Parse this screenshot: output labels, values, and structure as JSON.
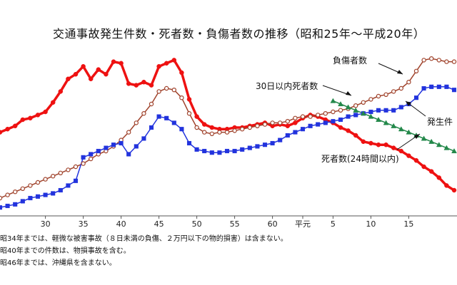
{
  "chart_data": {
    "type": "line",
    "title": "交通事故発生件数・死者数・負傷者数の推移（昭和25年～平成20年）",
    "x_ticks": [
      "30",
      "35",
      "40",
      "45",
      "50",
      "55",
      "60",
      "平元",
      "5",
      "10",
      "15"
    ],
    "series": [
      {
        "name": "死者数（24時間以内）",
        "color": "#ee1111",
        "x": [
          24,
          25,
          26,
          27,
          28,
          29,
          30,
          31,
          32,
          33,
          34,
          35,
          36,
          37,
          38,
          39,
          40,
          41,
          42,
          43,
          44,
          45,
          46,
          47,
          48,
          49,
          50,
          51,
          52,
          53,
          54,
          55,
          56,
          57,
          58,
          59,
          60,
          61,
          62,
          63,
          64,
          65,
          66,
          67,
          68,
          69,
          70,
          71,
          72,
          73,
          74,
          75,
          76,
          77,
          78,
          79,
          80,
          81,
          82,
          83,
          84
        ],
        "y": [
          52,
          54,
          56,
          60,
          61,
          63,
          65,
          71,
          78,
          86,
          89,
          94,
          86,
          92,
          89,
          97,
          96,
          83,
          82,
          84,
          82,
          94,
          96,
          98,
          90,
          73,
          62,
          57,
          55,
          54,
          54,
          55,
          55,
          56,
          57,
          58,
          56,
          57,
          56,
          58,
          61,
          63,
          62,
          60,
          58,
          55,
          53,
          50,
          46,
          45,
          44,
          44,
          42,
          40,
          37,
          34,
          30,
          27,
          23,
          18,
          15
        ]
      },
      {
        "name": "負傷者数",
        "color": "#a0432c",
        "x": [
          24,
          25,
          26,
          27,
          28,
          29,
          30,
          31,
          32,
          33,
          34,
          35,
          36,
          37,
          38,
          39,
          40,
          41,
          42,
          43,
          44,
          45,
          46,
          47,
          48,
          49,
          50,
          51,
          52,
          53,
          54,
          55,
          56,
          57,
          58,
          59,
          60,
          61,
          62,
          63,
          64,
          65,
          66,
          67,
          68,
          69,
          70,
          71,
          72,
          73,
          74,
          75,
          76,
          77,
          78,
          79,
          80,
          81,
          82,
          83,
          84
        ],
        "y": [
          10,
          12,
          14,
          16,
          18,
          20,
          22,
          24,
          26,
          28,
          30,
          32,
          35,
          38,
          40,
          43,
          47,
          52,
          58,
          64,
          70,
          78,
          80,
          79,
          74,
          64,
          55,
          52,
          51,
          52,
          52,
          53,
          54,
          55,
          56,
          57,
          58,
          58,
          59,
          61,
          62,
          62,
          63,
          64,
          65,
          66,
          67,
          69,
          71,
          73,
          75,
          76,
          78,
          80,
          84,
          91,
          98,
          99,
          98,
          97,
          97
        ]
      },
      {
        "name": "発生件数",
        "color": "#2233dd",
        "x": [
          24,
          25,
          26,
          27,
          28,
          29,
          30,
          31,
          32,
          33,
          34,
          35,
          36,
          37,
          38,
          39,
          40,
          41,
          42,
          43,
          44,
          45,
          46,
          47,
          48,
          49,
          50,
          51,
          52,
          53,
          54,
          55,
          56,
          57,
          58,
          59,
          60,
          61,
          62,
          63,
          64,
          65,
          66,
          67,
          68,
          69,
          70,
          71,
          72,
          73,
          74,
          75,
          76,
          77,
          78,
          79,
          80,
          81,
          82,
          83,
          84
        ],
        "y": [
          4,
          5,
          6,
          8,
          10,
          11,
          12,
          13,
          15,
          18,
          21,
          36,
          38,
          40,
          42,
          44,
          45,
          38,
          43,
          48,
          55,
          62,
          61,
          58,
          54,
          45,
          41,
          40,
          39,
          39,
          40,
          40,
          41,
          42,
          43,
          44,
          45,
          47,
          50,
          52,
          54,
          56,
          57,
          58,
          59,
          60,
          62,
          63,
          64,
          65,
          66,
          66,
          66,
          68,
          70,
          74,
          80,
          81,
          81,
          81,
          79
        ]
      },
      {
        "name": "30日以内死者数",
        "color": "#23884a",
        "x": [
          68,
          69,
          70,
          71,
          72,
          73,
          74,
          75,
          76,
          77,
          78,
          79,
          80,
          81,
          82,
          83,
          84
        ],
        "y": [
          72,
          70,
          68,
          66,
          64,
          62,
          60,
          58,
          56,
          54,
          52,
          50,
          48,
          46,
          44,
          42,
          40
        ]
      }
    ],
    "annotations": {
      "injured": "負傷者数",
      "deaths_30day": "30日以内死者数",
      "incidents": "発生件",
      "deaths_24h": "死者数(24時間以内)"
    }
  },
  "notes": [
    "昭34年までは、軽微な被害事故（８日未満の負傷、２万円以下の物的損害）は含まない。",
    "昭40年までの件数は、物損事故を含む。",
    "昭46年までは、沖縄県を含まない。"
  ]
}
